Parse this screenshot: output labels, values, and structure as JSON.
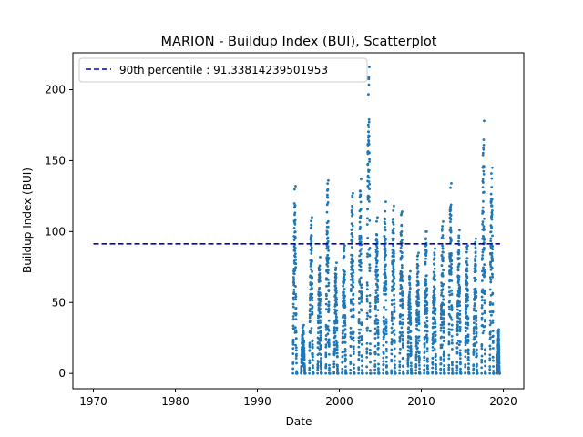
{
  "chart_data": {
    "type": "scatter",
    "title": "MARION - Buildup Index (BUI), Scatterplot",
    "xlabel": "Date",
    "ylabel": "Buildup Index (BUI)",
    "xlim": [
      1967.5,
      2022.5
    ],
    "ylim": [
      -10.8,
      226.0
    ],
    "x_ticks": [
      1970,
      1980,
      1990,
      2000,
      2010,
      2020
    ],
    "x_tick_labels": [
      "1970",
      "1980",
      "1990",
      "2000",
      "2010",
      "2020"
    ],
    "y_ticks": [
      0,
      50,
      100,
      150,
      200
    ],
    "y_tick_labels": [
      "0",
      "50",
      "100",
      "150",
      "200"
    ],
    "grid": false,
    "legend_placement": "top-left",
    "percentile_line": {
      "label": "90th percentile : 91.33814239501953",
      "value": 91.33814239501953,
      "x_start": 1970.0,
      "x_end": 2019.6,
      "color": "#0000cc",
      "style": "dashed"
    },
    "series": [
      {
        "marker_color": "#1f77b4",
        "seasons": [
          {
            "year": 1994,
            "start": 1994.35,
            "end": 1994.85,
            "max": 132
          },
          {
            "year": 1995,
            "start": 1995.35,
            "end": 1995.85,
            "max": 34
          },
          {
            "year": 1996,
            "start": 1996.35,
            "end": 1996.85,
            "max": 110
          },
          {
            "year": 1997,
            "start": 1997.35,
            "end": 1997.85,
            "max": 82
          },
          {
            "year": 1998,
            "start": 1998.35,
            "end": 1998.85,
            "max": 136
          },
          {
            "year": 1999,
            "start": 1999.35,
            "end": 1999.85,
            "max": 78
          },
          {
            "year": 2000,
            "start": 2000.35,
            "end": 2000.85,
            "max": 90
          },
          {
            "year": 2001,
            "start": 2001.35,
            "end": 2001.85,
            "max": 127
          },
          {
            "year": 2002,
            "start": 2002.35,
            "end": 2002.85,
            "max": 137
          },
          {
            "year": 2003,
            "start": 2003.35,
            "end": 2003.85,
            "max": 216
          },
          {
            "year": 2004,
            "start": 2004.35,
            "end": 2004.85,
            "max": 110
          },
          {
            "year": 2005,
            "start": 2005.35,
            "end": 2005.85,
            "max": 121
          },
          {
            "year": 2006,
            "start": 2006.35,
            "end": 2006.85,
            "max": 118
          },
          {
            "year": 2007,
            "start": 2007.35,
            "end": 2007.85,
            "max": 114
          },
          {
            "year": 2008,
            "start": 2008.35,
            "end": 2008.85,
            "max": 72
          },
          {
            "year": 2009,
            "start": 2009.35,
            "end": 2009.85,
            "max": 85
          },
          {
            "year": 2010,
            "start": 2010.35,
            "end": 2010.85,
            "max": 100
          },
          {
            "year": 2011,
            "start": 2011.35,
            "end": 2011.85,
            "max": 88
          },
          {
            "year": 2012,
            "start": 2012.35,
            "end": 2012.85,
            "max": 107
          },
          {
            "year": 2013,
            "start": 2013.35,
            "end": 2013.85,
            "max": 134
          },
          {
            "year": 2014,
            "start": 2014.35,
            "end": 2014.85,
            "max": 101
          },
          {
            "year": 2015,
            "start": 2015.35,
            "end": 2015.85,
            "max": 90
          },
          {
            "year": 2016,
            "start": 2016.35,
            "end": 2016.85,
            "max": 95
          },
          {
            "year": 2017,
            "start": 2017.35,
            "end": 2017.85,
            "max": 178
          },
          {
            "year": 2018,
            "start": 2018.35,
            "end": 2018.85,
            "max": 145
          },
          {
            "year": 2019,
            "start": 2019.3,
            "end": 2019.55,
            "max": 31
          }
        ]
      }
    ]
  }
}
